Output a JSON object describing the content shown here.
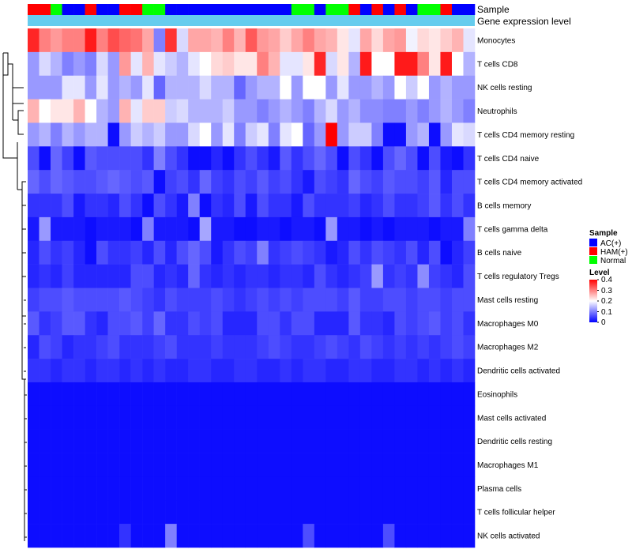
{
  "chart_data": {
    "type": "heatmap",
    "title": "",
    "annotation_labels": [
      "Sample",
      "Gene expression level"
    ],
    "sample_groups": [
      "AC(+)",
      "HAM(+)",
      "Normal"
    ],
    "column_samples": [
      "HAM(+)",
      "HAM(+)",
      "Normal",
      "AC(+)",
      "AC(+)",
      "HAM(+)",
      "AC(+)",
      "AC(+)",
      "HAM(+)",
      "HAM(+)",
      "Normal",
      "Normal",
      "AC(+)",
      "AC(+)",
      "AC(+)",
      "AC(+)",
      "AC(+)",
      "AC(+)",
      "AC(+)",
      "AC(+)",
      "AC(+)",
      "AC(+)",
      "AC(+)",
      "Normal",
      "Normal",
      "AC(+)",
      "Normal",
      "Normal",
      "HAM(+)",
      "AC(+)",
      "HAM(+)",
      "AC(+)",
      "HAM(+)",
      "AC(+)",
      "Normal",
      "Normal",
      "HAM(+)",
      "AC(+)",
      "AC(+)"
    ],
    "rows": [
      {
        "name": "Monocytes",
        "values": [
          0.37,
          0.3,
          0.28,
          0.3,
          0.3,
          0.38,
          0.3,
          0.34,
          0.32,
          0.31,
          0.27,
          0.1,
          0.36,
          0.17,
          0.27,
          0.27,
          0.26,
          0.3,
          0.26,
          0.33,
          0.28,
          0.27,
          0.24,
          0.27,
          0.3,
          0.27,
          0.26,
          0.22,
          0.18,
          0.27,
          0.23,
          0.27,
          0.28,
          0.19,
          0.23,
          0.22,
          0.24,
          0.26,
          0.18
        ]
      },
      {
        "name": "T cells CD8",
        "values": [
          0.12,
          0.17,
          0.14,
          0.1,
          0.12,
          0.1,
          0.17,
          0.12,
          0.28,
          0.18,
          0.26,
          0.18,
          0.16,
          0.14,
          0.18,
          0.2,
          0.23,
          0.24,
          0.22,
          0.22,
          0.3,
          0.26,
          0.18,
          0.18,
          0.22,
          0.37,
          0.17,
          0.22,
          0.14,
          0.38,
          0.2,
          0.2,
          0.38,
          0.38,
          0.3,
          0.22,
          0.38,
          0.2,
          0.14
        ]
      },
      {
        "name": "NK cells resting",
        "values": [
          0.12,
          0.12,
          0.12,
          0.18,
          0.18,
          0.12,
          0.18,
          0.12,
          0.14,
          0.12,
          0.18,
          0.08,
          0.14,
          0.14,
          0.14,
          0.17,
          0.14,
          0.14,
          0.08,
          0.12,
          0.14,
          0.14,
          0.2,
          0.12,
          0.2,
          0.2,
          0.12,
          0.18,
          0.12,
          0.12,
          0.14,
          0.12,
          0.2,
          0.16,
          0.2,
          0.12,
          0.14,
          0.12,
          0.12
        ]
      },
      {
        "name": "Neutrophils",
        "values": [
          0.26,
          0.2,
          0.22,
          0.22,
          0.26,
          0.2,
          0.14,
          0.12,
          0.26,
          0.18,
          0.24,
          0.24,
          0.16,
          0.17,
          0.14,
          0.14,
          0.14,
          0.16,
          0.12,
          0.12,
          0.1,
          0.12,
          0.14,
          0.12,
          0.1,
          0.14,
          0.17,
          0.12,
          0.14,
          0.11,
          0.11,
          0.1,
          0.1,
          0.12,
          0.1,
          0.12,
          0.14,
          0.12,
          0.1
        ]
      },
      {
        "name": "T cells CD4 memory resting",
        "values": [
          0.12,
          0.14,
          0.1,
          0.14,
          0.12,
          0.14,
          0.14,
          0.01,
          0.12,
          0.16,
          0.14,
          0.16,
          0.12,
          0.12,
          0.17,
          0.2,
          0.12,
          0.18,
          0.1,
          0.16,
          0.18,
          0.1,
          0.18,
          0.2,
          0.08,
          0.12,
          0.4,
          0.12,
          0.16,
          0.16,
          0.1,
          0.01,
          0.01,
          0.12,
          0.14,
          0.01,
          0.12,
          0.18,
          0.17
        ]
      },
      {
        "name": "T cells CD4 naive",
        "values": [
          0.06,
          0.01,
          0.08,
          0.05,
          0.01,
          0.07,
          0.06,
          0.06,
          0.06,
          0.06,
          0.04,
          0.1,
          0.06,
          0.04,
          0.01,
          0.01,
          0.03,
          0.01,
          0.04,
          0.06,
          0.04,
          0.02,
          0.07,
          0.04,
          0.06,
          0.08,
          0.06,
          0.01,
          0.06,
          0.04,
          0.01,
          0.06,
          0.08,
          0.06,
          0.01,
          0.06,
          0.02,
          0.01,
          0.04
        ]
      },
      {
        "name": "T cells CD4 memory activated",
        "values": [
          0.08,
          0.06,
          0.08,
          0.07,
          0.06,
          0.06,
          0.07,
          0.08,
          0.07,
          0.06,
          0.07,
          0.01,
          0.05,
          0.06,
          0.04,
          0.08,
          0.05,
          0.04,
          0.06,
          0.05,
          0.07,
          0.05,
          0.06,
          0.04,
          0.02,
          0.06,
          0.05,
          0.04,
          0.08,
          0.06,
          0.05,
          0.07,
          0.06,
          0.06,
          0.05,
          0.07,
          0.03,
          0.06,
          0.06
        ]
      },
      {
        "name": "B cells memory",
        "values": [
          0.04,
          0.04,
          0.04,
          0.06,
          0.02,
          0.04,
          0.04,
          0.03,
          0.06,
          0.04,
          0.01,
          0.06,
          0.04,
          0.02,
          0.1,
          0.01,
          0.04,
          0.03,
          0.06,
          0.02,
          0.06,
          0.04,
          0.04,
          0.02,
          0.06,
          0.04,
          0.04,
          0.04,
          0.05,
          0.03,
          0.04,
          0.06,
          0.04,
          0.04,
          0.05,
          0.07,
          0.04,
          0.06,
          0.04
        ]
      },
      {
        "name": "T cells gamma delta",
        "values": [
          0.02,
          0.12,
          0.02,
          0.02,
          0.02,
          0.01,
          0.02,
          0.02,
          0.02,
          0.01,
          0.1,
          0.02,
          0.02,
          0.02,
          0.01,
          0.13,
          0.02,
          0.02,
          0.01,
          0.01,
          0.02,
          0.02,
          0.01,
          0.02,
          0.02,
          0.01,
          0.12,
          0.02,
          0.02,
          0.01,
          0.02,
          0.01,
          0.02,
          0.02,
          0.02,
          0.01,
          0.02,
          0.02,
          0.1
        ]
      },
      {
        "name": "B cells naive",
        "values": [
          0.03,
          0.06,
          0.04,
          0.05,
          0.03,
          0.01,
          0.06,
          0.04,
          0.04,
          0.05,
          0.03,
          0.06,
          0.03,
          0.06,
          0.08,
          0.06,
          0.02,
          0.04,
          0.06,
          0.05,
          0.1,
          0.04,
          0.05,
          0.06,
          0.05,
          0.04,
          0.02,
          0.03,
          0.06,
          0.04,
          0.06,
          0.05,
          0.04,
          0.06,
          0.03,
          0.06,
          0.01,
          0.03,
          0.05
        ]
      },
      {
        "name": "T cells regulatory  Tregs",
        "values": [
          0.03,
          0.04,
          0.03,
          0.05,
          0.03,
          0.03,
          0.03,
          0.03,
          0.03,
          0.06,
          0.06,
          0.03,
          0.04,
          0.03,
          0.08,
          0.04,
          0.03,
          0.04,
          0.03,
          0.04,
          0.04,
          0.03,
          0.04,
          0.04,
          0.03,
          0.06,
          0.04,
          0.03,
          0.04,
          0.05,
          0.12,
          0.04,
          0.05,
          0.04,
          0.11,
          0.05,
          0.04,
          0.03,
          0.06
        ]
      },
      {
        "name": "Mast cells resting",
        "values": [
          0.05,
          0.06,
          0.06,
          0.07,
          0.06,
          0.06,
          0.06,
          0.06,
          0.07,
          0.06,
          0.05,
          0.04,
          0.06,
          0.05,
          0.05,
          0.05,
          0.06,
          0.05,
          0.04,
          0.05,
          0.06,
          0.05,
          0.06,
          0.05,
          0.06,
          0.06,
          0.06,
          0.05,
          0.07,
          0.05,
          0.05,
          0.06,
          0.06,
          0.05,
          0.06,
          0.06,
          0.05,
          0.06,
          0.06
        ]
      },
      {
        "name": "Macrophages M0",
        "values": [
          0.07,
          0.04,
          0.05,
          0.07,
          0.07,
          0.04,
          0.03,
          0.06,
          0.06,
          0.07,
          0.05,
          0.08,
          0.04,
          0.04,
          0.06,
          0.05,
          0.06,
          0.03,
          0.03,
          0.03,
          0.06,
          0.06,
          0.04,
          0.06,
          0.06,
          0.03,
          0.03,
          0.03,
          0.07,
          0.04,
          0.04,
          0.03,
          0.06,
          0.05,
          0.06,
          0.07,
          0.05,
          0.06,
          0.04
        ]
      },
      {
        "name": "Macrophages M2",
        "values": [
          0.03,
          0.06,
          0.05,
          0.03,
          0.04,
          0.04,
          0.05,
          0.06,
          0.04,
          0.04,
          0.04,
          0.05,
          0.06,
          0.04,
          0.04,
          0.04,
          0.05,
          0.04,
          0.04,
          0.04,
          0.05,
          0.06,
          0.05,
          0.04,
          0.04,
          0.05,
          0.06,
          0.05,
          0.04,
          0.06,
          0.05,
          0.04,
          0.05,
          0.04,
          0.05,
          0.04,
          0.05,
          0.06,
          0.05
        ]
      },
      {
        "name": "Dendritic cells activated",
        "values": [
          0.04,
          0.04,
          0.03,
          0.04,
          0.04,
          0.03,
          0.04,
          0.04,
          0.03,
          0.04,
          0.03,
          0.04,
          0.03,
          0.03,
          0.04,
          0.04,
          0.03,
          0.03,
          0.04,
          0.04,
          0.03,
          0.03,
          0.04,
          0.03,
          0.04,
          0.04,
          0.03,
          0.03,
          0.04,
          0.04,
          0.03,
          0.03,
          0.04,
          0.04,
          0.03,
          0.04,
          0.03,
          0.04,
          0.03
        ]
      },
      {
        "name": "Eosinophils",
        "values": [
          0.01,
          0.01,
          0.01,
          0.01,
          0.01,
          0.01,
          0.01,
          0.01,
          0.01,
          0.01,
          0.01,
          0.01,
          0.01,
          0.01,
          0.01,
          0.01,
          0.01,
          0.01,
          0.01,
          0.01,
          0.01,
          0.01,
          0.01,
          0.01,
          0.01,
          0.01,
          0.01,
          0.01,
          0.01,
          0.01,
          0.01,
          0.01,
          0.01,
          0.01,
          0.01,
          0.01,
          0.01,
          0.01,
          0.01
        ]
      },
      {
        "name": "Mast cells activated",
        "values": [
          0.01,
          0.01,
          0.01,
          0.01,
          0.01,
          0.01,
          0.01,
          0.01,
          0.01,
          0.01,
          0.01,
          0.01,
          0.01,
          0.01,
          0.01,
          0.01,
          0.01,
          0.01,
          0.01,
          0.01,
          0.01,
          0.01,
          0.01,
          0.01,
          0.01,
          0.01,
          0.01,
          0.01,
          0.01,
          0.01,
          0.01,
          0.01,
          0.01,
          0.01,
          0.01,
          0.01,
          0.01,
          0.01,
          0.01
        ]
      },
      {
        "name": "Dendritic cells resting",
        "values": [
          0.01,
          0.01,
          0.01,
          0.01,
          0.01,
          0.01,
          0.01,
          0.01,
          0.01,
          0.01,
          0.01,
          0.01,
          0.01,
          0.01,
          0.01,
          0.01,
          0.01,
          0.01,
          0.01,
          0.01,
          0.01,
          0.01,
          0.01,
          0.01,
          0.01,
          0.01,
          0.01,
          0.01,
          0.01,
          0.01,
          0.01,
          0.01,
          0.01,
          0.01,
          0.01,
          0.01,
          0.01,
          0.01,
          0.01
        ]
      },
      {
        "name": "Macrophages M1",
        "values": [
          0.01,
          0.01,
          0.01,
          0.01,
          0.01,
          0.01,
          0.01,
          0.01,
          0.01,
          0.01,
          0.01,
          0.01,
          0.01,
          0.01,
          0.01,
          0.01,
          0.01,
          0.01,
          0.01,
          0.01,
          0.01,
          0.01,
          0.01,
          0.01,
          0.01,
          0.01,
          0.01,
          0.01,
          0.01,
          0.01,
          0.01,
          0.01,
          0.01,
          0.01,
          0.01,
          0.01,
          0.01,
          0.01,
          0.01
        ]
      },
      {
        "name": "Plasma cells",
        "values": [
          0.01,
          0.01,
          0.01,
          0.01,
          0.01,
          0.01,
          0.01,
          0.01,
          0.01,
          0.01,
          0.01,
          0.01,
          0.01,
          0.01,
          0.01,
          0.01,
          0.01,
          0.01,
          0.01,
          0.01,
          0.01,
          0.01,
          0.01,
          0.01,
          0.01,
          0.01,
          0.01,
          0.01,
          0.01,
          0.01,
          0.01,
          0.01,
          0.01,
          0.01,
          0.01,
          0.01,
          0.01,
          0.01,
          0.01
        ]
      },
      {
        "name": "T cells follicular helper",
        "values": [
          0.01,
          0.01,
          0.01,
          0.01,
          0.01,
          0.01,
          0.01,
          0.01,
          0.01,
          0.01,
          0.01,
          0.01,
          0.01,
          0.01,
          0.01,
          0.01,
          0.01,
          0.01,
          0.01,
          0.01,
          0.01,
          0.01,
          0.01,
          0.01,
          0.01,
          0.01,
          0.01,
          0.01,
          0.01,
          0.01,
          0.01,
          0.01,
          0.01,
          0.01,
          0.01,
          0.01,
          0.01,
          0.01,
          0.01
        ]
      },
      {
        "name": "NK cells activated",
        "values": [
          0.01,
          0.01,
          0.01,
          0.01,
          0.01,
          0.01,
          0.01,
          0.01,
          0.04,
          0.01,
          0.01,
          0.01,
          0.1,
          0.01,
          0.01,
          0.01,
          0.01,
          0.01,
          0.01,
          0.01,
          0.01,
          0.01,
          0.01,
          0.01,
          0.06,
          0.01,
          0.01,
          0.01,
          0.01,
          0.01,
          0.01,
          0.06,
          0.01,
          0.01,
          0.01,
          0.01,
          0.01,
          0.01,
          0.01
        ]
      }
    ],
    "legend": {
      "sample_title": "Sample",
      "level_title": "Level",
      "level_ticks": [
        "0.4",
        "0.3",
        "0.2",
        "0.1",
        "0"
      ],
      "level_range": [
        0,
        0.4
      ],
      "placement": "right"
    },
    "colors": {
      "AC(+)": "#0000ff",
      "HAM(+)": "#ff0000",
      "Normal": "#00ff00",
      "low": "#0000ff",
      "mid": "#ffffff",
      "high": "#ff0000",
      "expression_bar": "#66ccee",
      "dendrogram": "#000000"
    }
  }
}
